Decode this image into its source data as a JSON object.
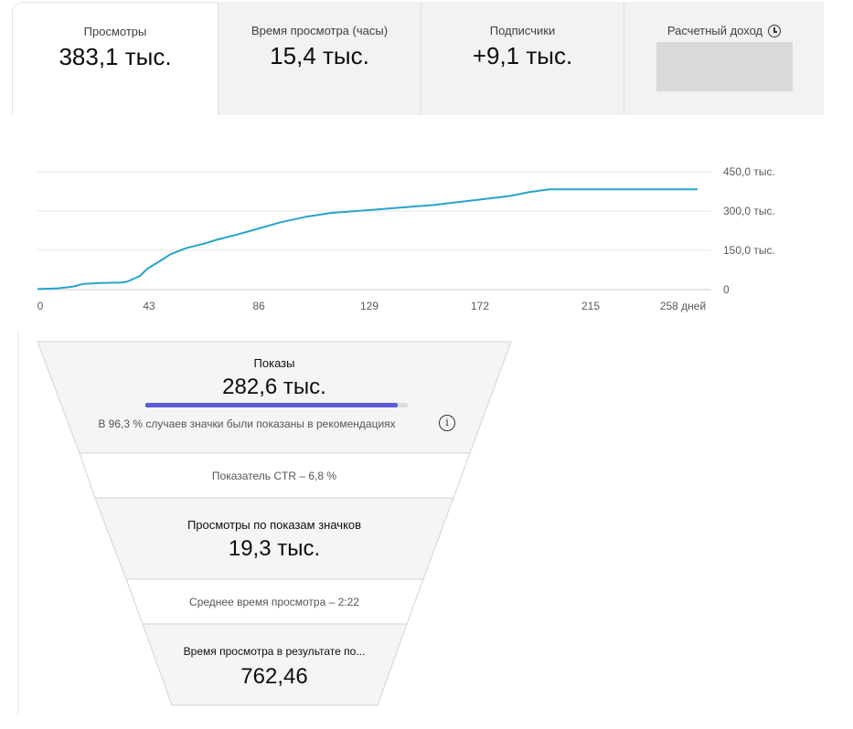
{
  "cards": [
    {
      "label": "Просмотры",
      "value": "383,1 тыс."
    },
    {
      "label": "Время просмотра (часы)",
      "value": "15,4 тыс."
    },
    {
      "label": "Подписчики",
      "value": "+9,1 тыс."
    },
    {
      "label": "Расчетный доход",
      "value": "",
      "icon": "clock-icon"
    }
  ],
  "chart_data": {
    "type": "line",
    "title": "",
    "xlabel": "",
    "ylabel": "",
    "x_ticks": [
      "0",
      "43",
      "86",
      "129",
      "172",
      "215",
      "258 дней"
    ],
    "y_ticks": [
      "0",
      "150,0 тыс.",
      "300,0 тыс.",
      "450,0 тыс."
    ],
    "xlim": [
      0,
      258
    ],
    "ylim": [
      0,
      450000
    ],
    "color": "#27a3cc",
    "grid": true,
    "series": [
      {
        "x": [
          0,
          8,
          14,
          18,
          25,
          33,
          35,
          40,
          43,
          48,
          52,
          58,
          65,
          70,
          78,
          86,
          95,
          105,
          115,
          129,
          140,
          155,
          172,
          185,
          192,
          200,
          215,
          230,
          258
        ],
        "y": [
          2000,
          5000,
          12000,
          22000,
          25000,
          27000,
          30000,
          52000,
          80000,
          110000,
          135000,
          158000,
          175000,
          190000,
          210000,
          232000,
          257000,
          278000,
          293000,
          303000,
          312000,
          323000,
          343000,
          358000,
          372000,
          383100,
          383100,
          383100,
          383100
        ]
      }
    ]
  },
  "funnel": {
    "impressions_label": "Показы",
    "impressions_value": "282,6 тыс.",
    "impressions_share": 0.963,
    "impressions_note": "В 96,3 % случаев значки были показаны в рекомендациях",
    "ctr": "Показатель CTR – 6,8 %",
    "views_label": "Просмотры по показам значков",
    "views_value": "19,3 тыс.",
    "avg_duration": "Среднее время просмотра – 2:22",
    "watch_label": "Время просмотра в результате по...",
    "watch_value": "762,46",
    "colors": {
      "band_dark": "#f5f5f5",
      "band_light": "#ffffff",
      "progress": "#5b5bd6"
    }
  }
}
